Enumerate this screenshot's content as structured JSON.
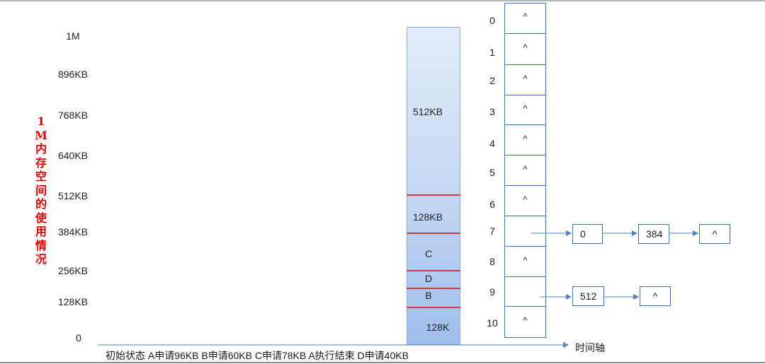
{
  "vertical_title": "1M内存空间的使用情况",
  "y_labels": [
    "1M",
    "896KB",
    "768KB",
    "640KB",
    "512KB",
    "384KB",
    "256KB",
    "128KB",
    "0"
  ],
  "memory_segments": [
    "512KB",
    "128KB",
    "C",
    "D",
    "B",
    "128K"
  ],
  "free_list_indices": [
    "0",
    "1",
    "2",
    "3",
    "4",
    "5",
    "6",
    "7",
    "8",
    "9",
    "10"
  ],
  "null_marker": "^",
  "list7_nodes": [
    "0",
    "384",
    "^"
  ],
  "list9_nodes": [
    "512",
    "^"
  ],
  "time_axis_label": "时间轴",
  "bottom_caption": "初始状态 A申请96KB B申请60KB C申请78KB A执行结束 D申请40KB"
}
